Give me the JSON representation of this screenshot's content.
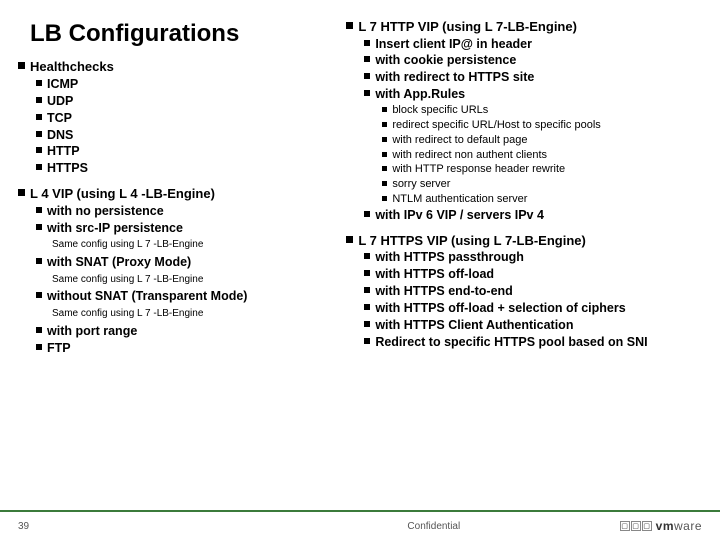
{
  "title": "LB Configurations",
  "left": {
    "healthchecks": {
      "heading": "Healthchecks",
      "items": [
        "ICMP",
        "UDP",
        "TCP",
        "DNS",
        "HTTP",
        "HTTPS"
      ]
    },
    "l4": {
      "heading": "L 4 VIP (using L 4 -LB-Engine)",
      "items": [
        "with no persistence",
        "with src-IP persistence"
      ],
      "note1": "Same config using L 7 -LB-Engine",
      "snat": "with SNAT (Proxy Mode)",
      "note2": "Same config using L 7 -LB-Engine",
      "nosnat": "without SNAT (Transparent Mode)",
      "note3": "Same config using L 7 -LB-Engine",
      "rest": [
        "with port range",
        "FTP"
      ]
    }
  },
  "right": {
    "l7http": {
      "heading": "L 7 HTTP VIP (using L 7-LB-Engine)",
      "items": [
        "Insert client IP@ in header",
        "with cookie persistence",
        "with redirect to HTTPS site",
        "with App.Rules"
      ],
      "sub": [
        "block specific URLs",
        "redirect specific URL/Host to specific pools",
        "with redirect to default page",
        "with redirect non authent clients",
        "with HTTP response header rewrite",
        "sorry server",
        "NTLM authentication server"
      ],
      "ipv6": "with IPv 6 VIP / servers IPv 4"
    },
    "l7https": {
      "heading": "L 7 HTTPS VIP (using L 7-LB-Engine)",
      "items": [
        "with HTTPS passthrough",
        "with HTTPS off-load",
        "with HTTPS end-to-end",
        "with HTTPS off-load + selection of ciphers",
        "with HTTPS Client Authentication",
        "Redirect to specific HTTPS pool based on SNI"
      ]
    }
  },
  "footer": {
    "page": "39",
    "conf": "Confidential",
    "brand": "ware",
    "brand_bold": "vm"
  }
}
